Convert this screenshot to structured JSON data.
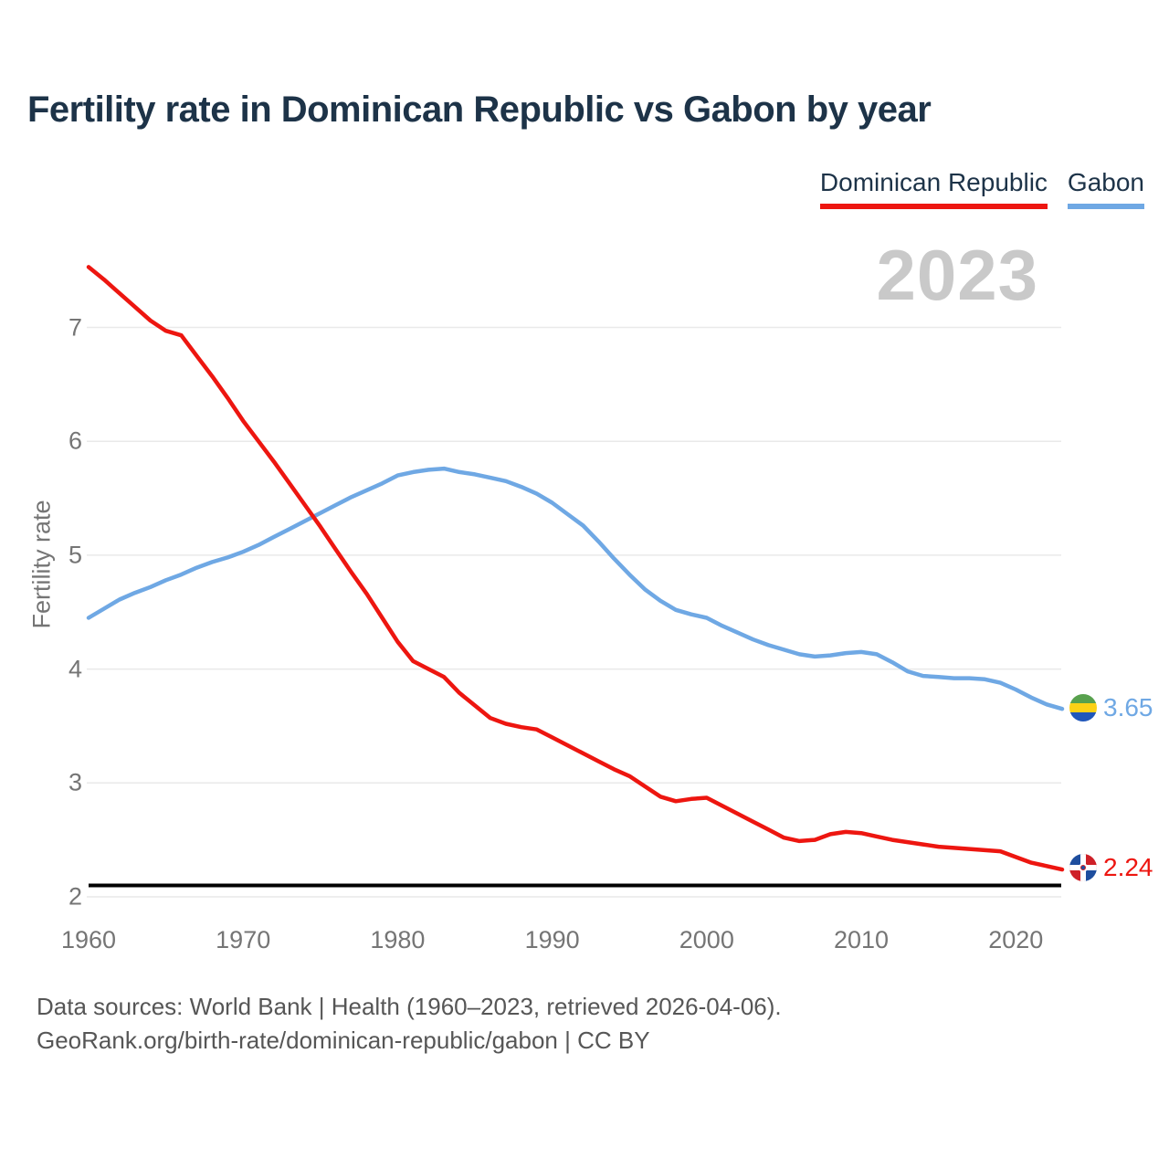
{
  "title": "Fertility rate in Dominican Republic vs Gabon by year",
  "watermark": "2023",
  "legend": {
    "items": [
      {
        "label": "Dominican Republic",
        "color": "#ed1610"
      },
      {
        "label": "Gabon",
        "color": "#6fa8e4"
      }
    ]
  },
  "y_axis": {
    "label": "Fertility rate"
  },
  "end_labels": {
    "gabon": "3.65",
    "dominican_republic": "2.24"
  },
  "footer": {
    "line1": "Data sources: World Bank | Health (1960–2023, retrieved 2026-04-06).",
    "line2": "GeoRank.org/birth-rate/dominican-republic/gabon | CC BY"
  },
  "chart_data": {
    "type": "line",
    "title": "Fertility rate in Dominican Republic vs Gabon by year",
    "xlabel": "year",
    "ylabel": "Fertility rate",
    "ylim": [
      2,
      7.6
    ],
    "y_ticks": [
      2,
      3,
      4,
      5,
      6,
      7
    ],
    "x_ticks": [
      1960,
      1970,
      1980,
      1990,
      2000,
      2010,
      2020
    ],
    "grid": "horizontal",
    "legend_position": "top-right",
    "reference_line": {
      "value": 2.1,
      "color": "#000000"
    },
    "x": [
      1960,
      1961,
      1962,
      1963,
      1964,
      1965,
      1966,
      1967,
      1968,
      1969,
      1970,
      1971,
      1972,
      1973,
      1974,
      1975,
      1976,
      1977,
      1978,
      1979,
      1980,
      1981,
      1982,
      1983,
      1984,
      1985,
      1986,
      1987,
      1988,
      1989,
      1990,
      1991,
      1992,
      1993,
      1994,
      1995,
      1996,
      1997,
      1998,
      1999,
      2000,
      2001,
      2002,
      2003,
      2004,
      2005,
      2006,
      2007,
      2008,
      2009,
      2010,
      2011,
      2012,
      2013,
      2014,
      2015,
      2016,
      2017,
      2018,
      2019,
      2020,
      2021,
      2022,
      2023
    ],
    "series": [
      {
        "name": "Dominican Republic",
        "color": "#ed1610",
        "end_value": 2.24,
        "values": [
          7.53,
          7.42,
          7.3,
          7.18,
          7.06,
          6.97,
          6.93,
          6.75,
          6.57,
          6.38,
          6.18,
          6.0,
          5.82,
          5.63,
          5.44,
          5.25,
          5.05,
          4.85,
          4.66,
          4.45,
          4.24,
          4.07,
          4.0,
          3.93,
          3.79,
          3.68,
          3.57,
          3.52,
          3.49,
          3.47,
          3.4,
          3.33,
          3.26,
          3.19,
          3.12,
          3.06,
          2.97,
          2.88,
          2.84,
          2.86,
          2.87,
          2.8,
          2.73,
          2.66,
          2.59,
          2.52,
          2.49,
          2.5,
          2.55,
          2.57,
          2.56,
          2.53,
          2.5,
          2.48,
          2.46,
          2.44,
          2.43,
          2.42,
          2.41,
          2.4,
          2.35,
          2.3,
          2.27,
          2.24
        ]
      },
      {
        "name": "Gabon",
        "color": "#6fa8e4",
        "end_value": 3.65,
        "values": [
          4.45,
          4.53,
          4.61,
          4.67,
          4.72,
          4.78,
          4.83,
          4.89,
          4.94,
          4.98,
          5.03,
          5.09,
          5.16,
          5.23,
          5.3,
          5.37,
          5.44,
          5.51,
          5.57,
          5.63,
          5.7,
          5.73,
          5.75,
          5.76,
          5.73,
          5.71,
          5.68,
          5.65,
          5.6,
          5.54,
          5.46,
          5.36,
          5.26,
          5.12,
          4.97,
          4.83,
          4.7,
          4.6,
          4.52,
          4.48,
          4.45,
          4.38,
          4.32,
          4.26,
          4.21,
          4.17,
          4.13,
          4.11,
          4.12,
          4.14,
          4.15,
          4.13,
          4.06,
          3.98,
          3.94,
          3.93,
          3.92,
          3.92,
          3.91,
          3.88,
          3.82,
          3.75,
          3.69,
          3.65
        ]
      }
    ]
  }
}
